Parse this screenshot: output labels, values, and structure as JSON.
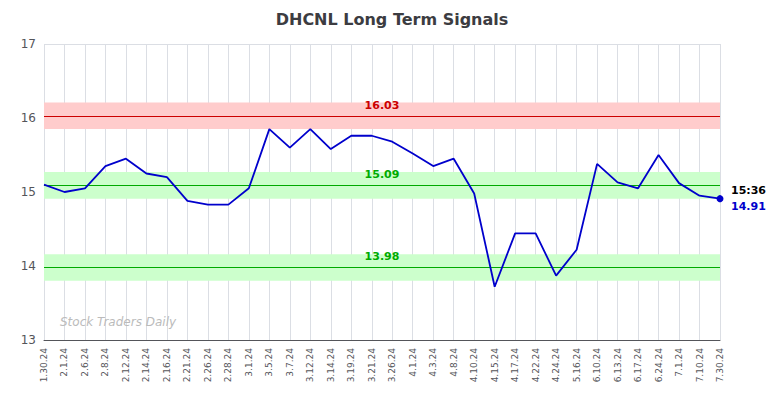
{
  "chart_data": {
    "type": "line",
    "title": "DHCNL Long Term Signals",
    "categories": [
      "1.30.24",
      "2.1.24",
      "2.6.24",
      "2.8.24",
      "2.12.24",
      "2.14.24",
      "2.16.24",
      "2.21.24",
      "2.26.24",
      "2.28.24",
      "3.1.24",
      "3.5.24",
      "3.7.24",
      "3.12.24",
      "3.14.24",
      "3.19.24",
      "3.21.24",
      "3.26.24",
      "4.1.24",
      "4.3.24",
      "4.8.24",
      "4.10.24",
      "4.15.24",
      "4.17.24",
      "4.22.24",
      "4.24.24",
      "5.16.24",
      "6.10.24",
      "6.13.24",
      "6.17.24",
      "6.24.24",
      "7.1.24",
      "7.10.24",
      "7.30.24"
    ],
    "values": [
      15.1,
      15.0,
      15.05,
      15.35,
      15.45,
      15.25,
      15.2,
      14.88,
      14.83,
      14.83,
      15.05,
      15.85,
      15.6,
      15.85,
      15.58,
      15.76,
      15.76,
      15.68,
      15.52,
      15.35,
      15.45,
      14.98,
      13.72,
      14.44,
      14.44,
      13.87,
      14.22,
      15.38,
      15.13,
      15.05,
      15.5,
      15.12,
      14.95,
      14.91
    ],
    "color": "#0000cc",
    "hlines": [
      {
        "value": 16.03,
        "label": "16.03",
        "color": "#cc0000",
        "band": [
          15.85,
          16.21
        ],
        "band_color": "#ffcccc"
      },
      {
        "value": 15.09,
        "label": "15.09",
        "color": "#00aa00",
        "band": [
          14.91,
          15.27
        ],
        "band_color": "#ccffcc"
      },
      {
        "value": 13.98,
        "label": "13.98",
        "color": "#00aa00",
        "band": [
          13.8,
          14.16
        ],
        "band_color": "#ccffcc"
      }
    ],
    "annotations": [
      {
        "text": "15:36",
        "x": "7.30.24",
        "y": 14.91
      },
      {
        "text": "14.91",
        "x": "7.30.24",
        "y": 14.91,
        "color": "#0000cc"
      },
      {
        "text": "Stock Traders Daily"
      }
    ],
    "ylim": [
      13.0,
      17.0
    ],
    "yticks": [
      13,
      14,
      15,
      16,
      17
    ],
    "grid": true
  }
}
